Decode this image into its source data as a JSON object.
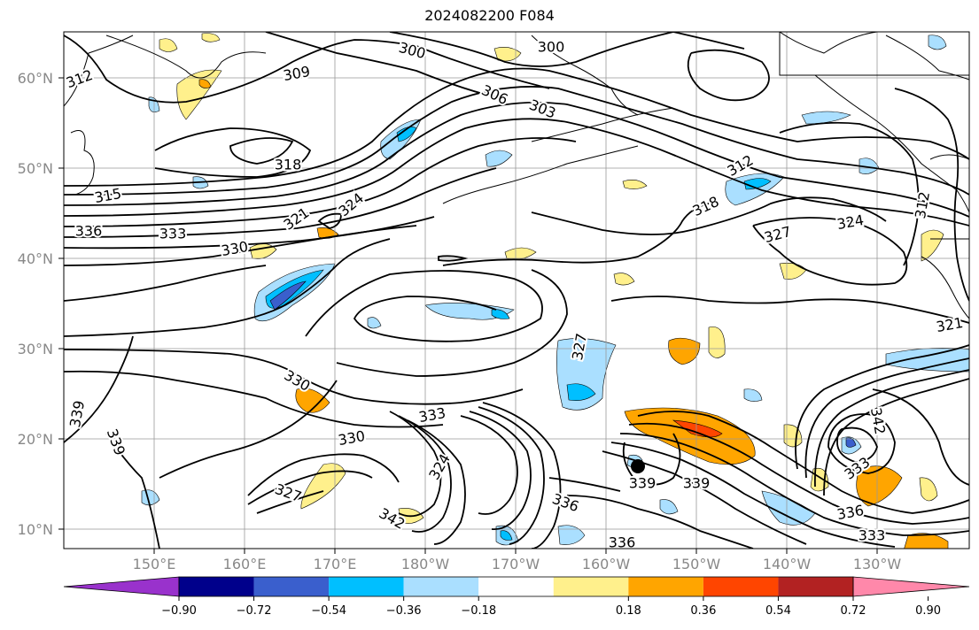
{
  "title": "2024082200 F084",
  "map": {
    "lat_labels": [
      "60°N",
      "50°N",
      "40°N",
      "30°N",
      "20°N",
      "10°N"
    ],
    "lon_labels": [
      "150°E",
      "160°E",
      "170°E",
      "180°W",
      "170°W",
      "160°W",
      "150°W",
      "140°W",
      "130°W"
    ],
    "contour_labels": [
      "300",
      "300",
      "309",
      "306",
      "303",
      "312",
      "318",
      "315",
      "336",
      "333",
      "321",
      "324",
      "330",
      "318",
      "312",
      "327",
      "324",
      "312",
      "321",
      "327",
      "330",
      "333",
      "330",
      "339",
      "339",
      "327",
      "324",
      "336",
      "342",
      "339",
      "339",
      "342",
      "333",
      "336",
      "333",
      "336"
    ],
    "filled_shading_colors": {
      "positive": [
        "#fff08c",
        "#ffa500",
        "#ff4500",
        "#b22222",
        "#ff88aa"
      ],
      "negative": [
        "#aadfff",
        "#00bfff",
        "#3a5fcd",
        "#00008b",
        "#9932cc"
      ]
    },
    "marker": "tropical-cyclone-position-dot"
  },
  "colorbar": {
    "labels": [
      "−0.90",
      "−0.72",
      "−0.54",
      "−0.36",
      "−0.18",
      "0.18",
      "0.36",
      "0.54",
      "0.72",
      "0.90"
    ],
    "colors": [
      "#9932cc",
      "#00008b",
      "#3a5fcd",
      "#00bfff",
      "#aadfff",
      "#ffffff",
      "#fff08c",
      "#ffa500",
      "#ff4500",
      "#b22222",
      "#ff88aa"
    ]
  }
}
